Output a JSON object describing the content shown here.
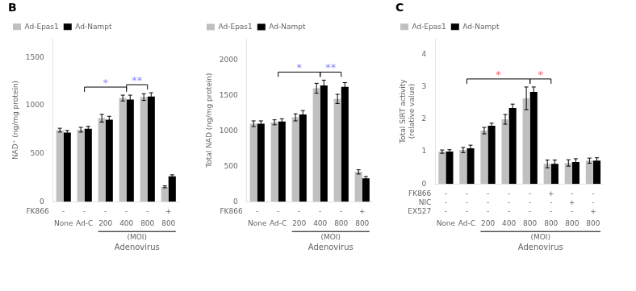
{
  "chart_data": [
    {
      "type": "bar",
      "title": "B",
      "ylabel": "NAD⁺ (ng/mg protein)",
      "xlabel": "Adenovirus",
      "categories": [
        "None",
        "Ad-C",
        "200",
        "400",
        "800",
        "800"
      ],
      "series": [
        {
          "name": "Ad-Epas1",
          "color": "#C0C0C0",
          "values": [
            745,
            750,
            870,
            1080,
            1090,
            155
          ],
          "errors": [
            20,
            25,
            40,
            30,
            35,
            10
          ]
        },
        {
          "name": "Ad-Nampt",
          "color": "#000000",
          "values": [
            720,
            760,
            855,
            1065,
            1095,
            265
          ],
          "errors": [
            22,
            25,
            35,
            45,
            40,
            15
          ]
        }
      ],
      "ylim": [
        0,
        1700
      ],
      "yticks": [
        0,
        500,
        1000,
        1500
      ],
      "grid": false,
      "legend": "upper left",
      "annotations": [
        {
          "text": "FK866",
          "labels": [
            "-",
            "-",
            "-",
            "-",
            "-",
            "+"
          ]
        },
        {
          "text": "(MOI)",
          "from": 2,
          "to": 5
        },
        {
          "text": "*",
          "from": 1,
          "to": 3,
          "color": "#8888FF"
        },
        {
          "text": "**",
          "from": 3,
          "to": 4,
          "color": "#8888FF"
        }
      ]
    },
    {
      "type": "bar",
      "ylabel": "Total NAD (ng/mg protein)",
      "xlabel": "Adenovirus",
      "categories": [
        "None",
        "Ad-C",
        "200",
        "400",
        "800",
        "800"
      ],
      "series": [
        {
          "name": "Ad-Epas1",
          "color": "#C0C0C0",
          "values": [
            1100,
            1120,
            1190,
            1600,
            1450,
            420
          ],
          "errors": [
            40,
            35,
            50,
            70,
            65,
            30
          ]
        },
        {
          "name": "Ad-Nampt",
          "color": "#000000",
          "values": [
            1100,
            1130,
            1230,
            1640,
            1620,
            330
          ],
          "errors": [
            40,
            40,
            55,
            75,
            60,
            25
          ]
        }
      ],
      "ylim": [
        0,
        2300
      ],
      "yticks": [
        0,
        500,
        1000,
        1500,
        2000
      ],
      "grid": false,
      "legend": "upper left",
      "annotations": [
        {
          "text": "FK866",
          "labels": [
            "-",
            "-",
            "-",
            "-",
            "-",
            "+"
          ]
        },
        {
          "text": "(MOI)",
          "from": 2,
          "to": 5
        },
        {
          "text": "*",
          "from": 1,
          "to": 3,
          "color": "#8888FF"
        },
        {
          "text": "**",
          "from": 3,
          "to": 4,
          "color": "#8888FF"
        }
      ]
    },
    {
      "type": "bar",
      "title": "C",
      "ylabel": "Total SIRT activity\n(relative value)",
      "xlabel": "Adenovirus",
      "categories": [
        "None",
        "Ad-C",
        "200",
        "400",
        "800",
        "800",
        "800",
        "800"
      ],
      "series": [
        {
          "name": "Ad-Epas1",
          "color": "#C0C0C0",
          "values": [
            1.0,
            1.05,
            1.65,
            2.0,
            2.65,
            0.62,
            0.65,
            0.72
          ],
          "errors": [
            0.05,
            0.08,
            0.1,
            0.15,
            0.35,
            0.12,
            0.1,
            0.08
          ]
        },
        {
          "name": "Ad-Nampt",
          "color": "#000000",
          "values": [
            1.0,
            1.1,
            1.8,
            2.35,
            2.85,
            0.62,
            0.68,
            0.72
          ],
          "errors": [
            0.06,
            0.1,
            0.08,
            0.12,
            0.15,
            0.12,
            0.1,
            0.09
          ]
        }
      ],
      "ylim": [
        0,
        4.5
      ],
      "yticks": [
        0,
        1,
        2,
        3,
        4
      ],
      "grid": false,
      "legend": "upper left",
      "annotations": [
        {
          "text": "FK866",
          "labels": [
            "-",
            "-",
            "-",
            "-",
            "-",
            "+",
            "-",
            "-"
          ]
        },
        {
          "text": "NIC",
          "labels": [
            "-",
            "-",
            "-",
            "-",
            "-",
            "-",
            "+",
            "-"
          ]
        },
        {
          "text": "EX527",
          "labels": [
            "-",
            "-",
            "-",
            "-",
            "-",
            "-",
            "-",
            "+"
          ]
        },
        {
          "text": "(MOI)",
          "from": 2,
          "to": 7
        },
        {
          "text": "*",
          "from": 1,
          "to": 4,
          "color": "#FF6060"
        },
        {
          "text": "*",
          "from": 4,
          "to": 5,
          "color": "#FF6060"
        }
      ]
    }
  ]
}
